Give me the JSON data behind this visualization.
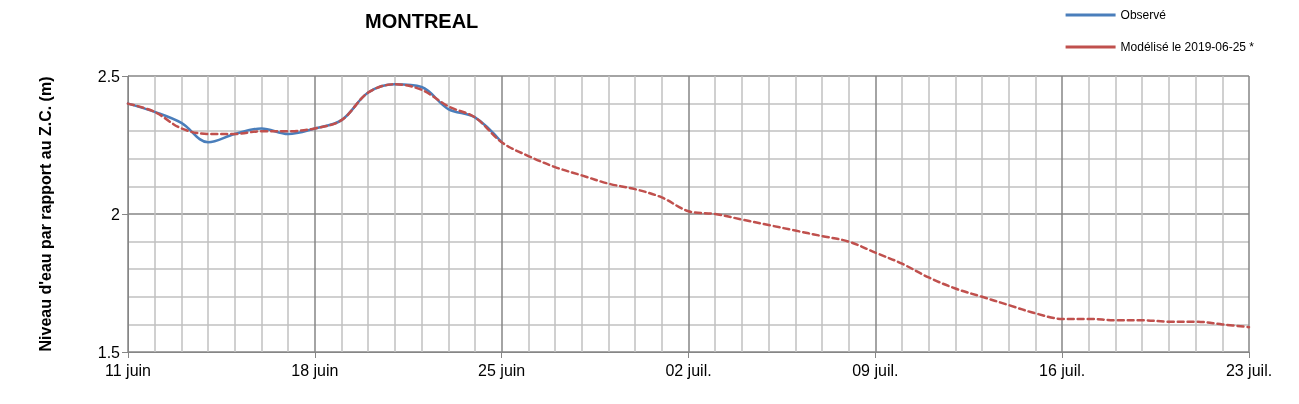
{
  "chart_data": {
    "type": "line",
    "title": "MONTREAL",
    "ylabel": "Niveau d'eau par rapport au Z.C. (m)",
    "xlim": [
      "2019-06-11",
      "2019-07-23"
    ],
    "xticks": [
      {
        "value": "2019-06-11",
        "label": "11 juin"
      },
      {
        "value": "2019-06-18",
        "label": "18 juin"
      },
      {
        "value": "2019-06-25",
        "label": "25 juin"
      },
      {
        "value": "2019-07-02",
        "label": "02 juil."
      },
      {
        "value": "2019-07-09",
        "label": "09 juil."
      },
      {
        "value": "2019-07-16",
        "label": "16 juil."
      },
      {
        "value": "2019-07-23",
        "label": "23 juil."
      }
    ],
    "ylim": [
      1.5,
      2.5
    ],
    "yticks": [
      1.5,
      2,
      2.5
    ],
    "grid": true,
    "legend": "top right",
    "marker": "none",
    "series": [
      {
        "name": "Observé",
        "color": "#4a7ebb",
        "line_style": "solid",
        "x": [
          "2019-06-11",
          "2019-06-12",
          "2019-06-13",
          "2019-06-14",
          "2019-06-15",
          "2019-06-16",
          "2019-06-17",
          "2019-06-18",
          "2019-06-19",
          "2019-06-20",
          "2019-06-21",
          "2019-06-22",
          "2019-06-23",
          "2019-06-24",
          "2019-06-25"
        ],
        "values": [
          2.4,
          2.37,
          2.33,
          2.26,
          2.29,
          2.31,
          2.29,
          2.31,
          2.34,
          2.44,
          2.47,
          2.46,
          2.38,
          2.35,
          2.26
        ]
      },
      {
        "name": "Modélisé le 2019-06-25 *",
        "color": "#c0504d",
        "line_style": "dashed",
        "x": [
          "2019-06-11",
          "2019-06-12",
          "2019-06-13",
          "2019-06-14",
          "2019-06-15",
          "2019-06-16",
          "2019-06-17",
          "2019-06-18",
          "2019-06-19",
          "2019-06-20",
          "2019-06-21",
          "2019-06-22",
          "2019-06-23",
          "2019-06-24",
          "2019-06-25",
          "2019-06-26",
          "2019-06-27",
          "2019-06-28",
          "2019-06-29",
          "2019-06-30",
          "2019-07-01",
          "2019-07-02",
          "2019-07-03",
          "2019-07-04",
          "2019-07-05",
          "2019-07-06",
          "2019-07-07",
          "2019-07-08",
          "2019-07-09",
          "2019-07-10",
          "2019-07-11",
          "2019-07-12",
          "2019-07-13",
          "2019-07-14",
          "2019-07-15",
          "2019-07-16",
          "2019-07-17",
          "2019-07-18",
          "2019-07-19",
          "2019-07-20",
          "2019-07-21",
          "2019-07-22",
          "2019-07-23"
        ],
        "values": [
          2.4,
          2.37,
          2.31,
          2.29,
          2.29,
          2.3,
          2.3,
          2.31,
          2.34,
          2.44,
          2.47,
          2.45,
          2.39,
          2.35,
          2.26,
          2.21,
          2.17,
          2.14,
          2.11,
          2.09,
          2.06,
          2.01,
          2.0,
          1.98,
          1.96,
          1.94,
          1.92,
          1.9,
          1.86,
          1.82,
          1.77,
          1.73,
          1.7,
          1.67,
          1.64,
          1.62,
          1.62,
          1.615,
          1.615,
          1.61,
          1.61,
          1.6,
          1.59
        ]
      }
    ]
  }
}
